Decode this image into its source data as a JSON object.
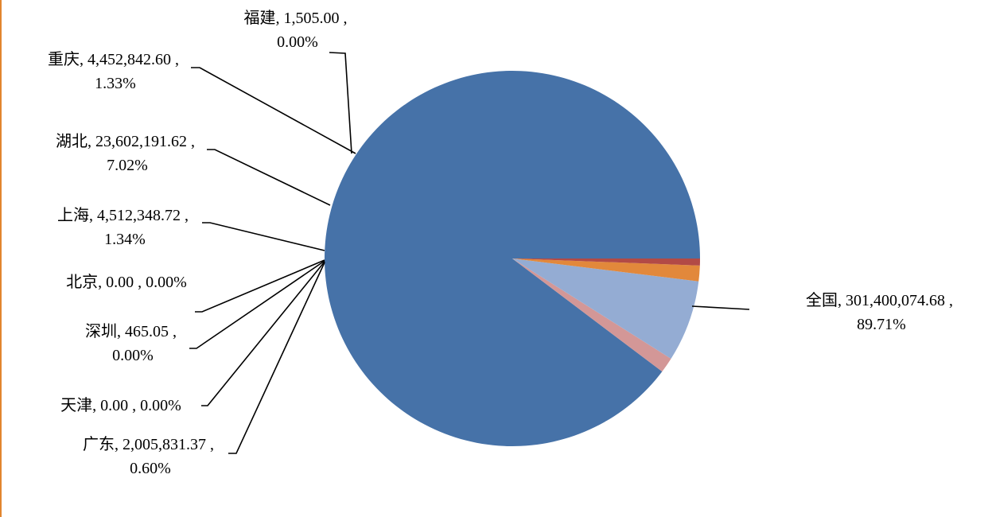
{
  "chart_data": {
    "type": "pie",
    "start_angle_deg": 0,
    "direction": "counterclockwise",
    "slices": [
      {
        "name": "全国",
        "value": 301400074.68,
        "value_text": "301,400,074.68",
        "percent": "89.71%",
        "color": "#4672A8"
      },
      {
        "name": "福建",
        "value": 1505.0,
        "value_text": "1,505.00",
        "percent": "0.00%",
        "color": "#4672A8"
      },
      {
        "name": "重庆",
        "value": 4452842.6,
        "value_text": "4,452,842.60",
        "percent": "1.33%",
        "color": "#D39797"
      },
      {
        "name": "湖北",
        "value": 23602191.62,
        "value_text": "23,602,191.62",
        "percent": "7.02%",
        "color": "#94ACD3"
      },
      {
        "name": "上海",
        "value": 4512348.72,
        "value_text": "4,512,348.72",
        "percent": "1.34%",
        "color": "#E2883B"
      },
      {
        "name": "北京",
        "value": 0.0,
        "value_text": "0.00",
        "percent": "0.00%",
        "color": "#5A8A3C"
      },
      {
        "name": "深圳",
        "value": 465.05,
        "value_text": "465.05",
        "percent": "0.00%",
        "color": "#6C4C93"
      },
      {
        "name": "天津",
        "value": 0.0,
        "value_text": "0.00",
        "percent": "0.00%",
        "color": "#3A9BB0"
      },
      {
        "name": "广东",
        "value": 2005831.37,
        "value_text": "2,005,831.37",
        "percent": "0.60%",
        "color": "#B24A46"
      }
    ]
  },
  "labels": {
    "全国": {
      "line1": "全国, 301,400,074.68 ,",
      "line2": "89.71%"
    },
    "福建": {
      "line1": "福建, 1,505.00 ,",
      "line2": "0.00%"
    },
    "重庆": {
      "line1": "重庆, 4,452,842.60 ,",
      "line2": "1.33%"
    },
    "湖北": {
      "line1": "湖北, 23,602,191.62 ,",
      "line2": "7.02%"
    },
    "上海": {
      "line1": "上海, 4,512,348.72 ,",
      "line2": "1.34%"
    },
    "北京": {
      "line1": "北京, 0.00 , 0.00%"
    },
    "深圳": {
      "line1": "深圳, 465.05 ,",
      "line2": "0.00%"
    },
    "天津": {
      "line1": "天津, 0.00 , 0.00%"
    },
    "广东": {
      "line1": "广东, 2,005,831.37 ,",
      "line2": "0.60%"
    }
  }
}
